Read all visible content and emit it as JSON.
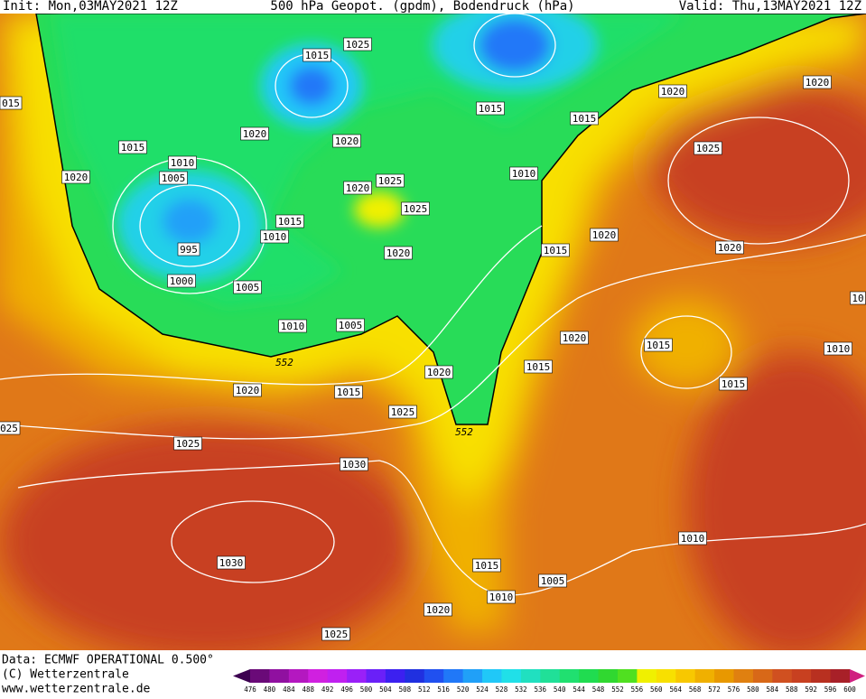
{
  "header": {
    "init": "Init: Mon,03MAY2021 12Z",
    "title": "500 hPa Geopot. (gpdm), Bodendruck (hPa)",
    "valid": "Valid: Thu,13MAY2021 12Z"
  },
  "isobar_labels": [
    "1025",
    "1015",
    "1015",
    "1020",
    "1020",
    "015",
    "1015",
    "1020",
    "1020",
    "1015",
    "1010",
    "1005",
    "1020",
    "1025",
    "1010",
    "1020",
    "1025",
    "1025",
    "1015",
    "1010",
    "995",
    "1020",
    "1015",
    "1020",
    "1020",
    "1000",
    "1005",
    "1010",
    "1005",
    "1020",
    "1015",
    "1010",
    "1015",
    "1020",
    "1015",
    "1020",
    "1015",
    "1025",
    "025",
    "1025",
    "1030",
    "1030",
    "1010",
    "1015",
    "1005",
    "1010",
    "1020",
    "1025",
    "10"
  ],
  "contour_labels": [
    "552",
    "552"
  ],
  "footer": {
    "data": "Data: ECMWF OPERATIONAL 0.500°",
    "copyright": "(C) Wetterzentrale",
    "url": "www.wetterzentrale.de"
  },
  "colorbar": {
    "levels": [
      476,
      480,
      484,
      488,
      492,
      496,
      500,
      504,
      508,
      512,
      516,
      520,
      524,
      528,
      532,
      536,
      540,
      544,
      548,
      552,
      556,
      560,
      564,
      568,
      572,
      576,
      580,
      584,
      588,
      592,
      596,
      600
    ],
    "colors": [
      "#3c0050",
      "#6a0a78",
      "#9010a0",
      "#b418c0",
      "#d020e0",
      "#c020f0",
      "#9a20f8",
      "#6a20f8",
      "#3c20f0",
      "#2030e0",
      "#2050f0",
      "#2078f8",
      "#20a0f8",
      "#20c8f8",
      "#20e0e8",
      "#20e0c0",
      "#20e098",
      "#20e070",
      "#20dc50",
      "#30d830",
      "#50e020",
      "#f0f000",
      "#f8e000",
      "#f8c800",
      "#f0b000",
      "#e89800",
      "#e08010",
      "#d86818",
      "#d05020",
      "#c84020",
      "#b83020",
      "#a82028",
      "#d02080"
    ]
  }
}
